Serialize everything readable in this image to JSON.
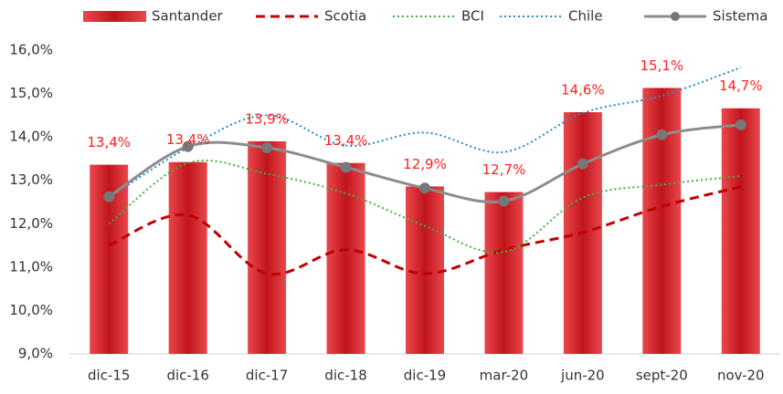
{
  "chart_data": {
    "type": "bar-line",
    "categories": [
      "dic-15",
      "dic-16",
      "dic-17",
      "dic-18",
      "dic-19",
      "mar-20",
      "jun-20",
      "sept-20",
      "nov-20"
    ],
    "series": [
      {
        "name": "Santander",
        "type": "bar",
        "color": "#c8161d",
        "values": [
          13.36,
          13.42,
          13.9,
          13.4,
          12.86,
          12.73,
          14.57,
          15.13,
          14.66
        ],
        "value_labels": [
          "13,4%",
          "13,4%",
          "13,9%",
          "13,4%",
          "12,9%",
          "12,7%",
          "14,6%",
          "15,1%",
          "14,7%"
        ]
      },
      {
        "name": "Scotia",
        "type": "line",
        "style": "dashed",
        "color": "#c00000",
        "values": [
          11.5,
          12.2,
          10.85,
          11.4,
          10.85,
          11.4,
          11.8,
          12.4,
          12.85
        ]
      },
      {
        "name": "BCI",
        "type": "line",
        "style": "dotted",
        "color": "#3cb43c",
        "values": [
          12.0,
          13.4,
          13.15,
          12.7,
          11.95,
          11.35,
          12.6,
          12.9,
          13.1
        ]
      },
      {
        "name": "Chile",
        "type": "line",
        "style": "dotted",
        "color": "#1f8fc8",
        "values": [
          12.6,
          13.75,
          14.5,
          13.8,
          14.1,
          13.65,
          14.55,
          14.95,
          15.6
        ]
      },
      {
        "name": "Sistema",
        "type": "line",
        "style": "solid",
        "markers": true,
        "color": "#8c8c8c",
        "values": [
          12.62,
          13.78,
          13.75,
          13.3,
          12.82,
          12.52,
          13.38,
          14.05,
          14.28
        ]
      }
    ],
    "ylim": [
      9,
      16
    ],
    "yticks": [
      {
        "value": 9,
        "label": "9,0%"
      },
      {
        "value": 10,
        "label": "10,0%"
      },
      {
        "value": 11,
        "label": "11,0%"
      },
      {
        "value": 12,
        "label": "12,0%"
      },
      {
        "value": 13,
        "label": "13,0%"
      },
      {
        "value": 14,
        "label": "14,0%"
      },
      {
        "value": 15,
        "label": "15,0%"
      },
      {
        "value": 16,
        "label": "16,0%"
      }
    ],
    "grid": false,
    "legend": "top"
  }
}
